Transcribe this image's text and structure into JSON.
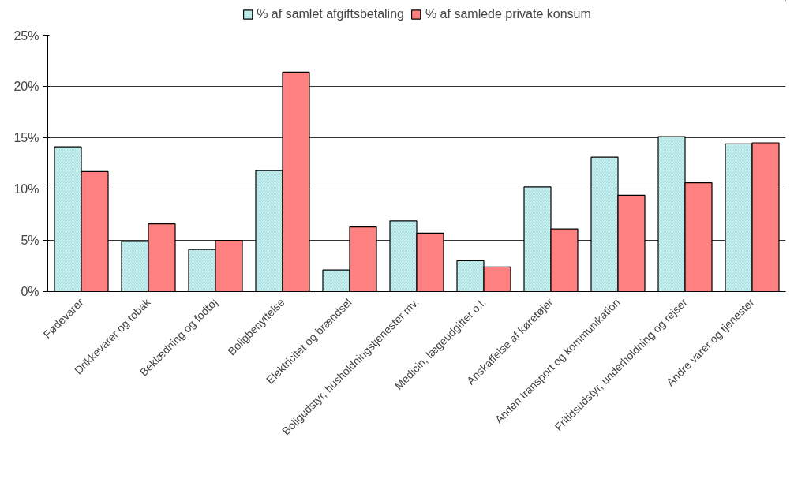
{
  "chart_data": {
    "type": "bar",
    "categories": [
      "Fødevarer",
      "Drikkevarer og tobak",
      "Beklædning og fodtøj",
      "Boligbenyttelse",
      "Elektricitet og brændsel",
      "Boligudstyr, husholdningstjenester mv.",
      "Medicin, lægeudgifter o.l.",
      "Anskaffelse af køretøjer",
      "Anden transport og kommunikation",
      "Fritidsudstyr, underholdning og rejser",
      "Andre varer og tjenester"
    ],
    "series": [
      {
        "name": "% af samlet afgiftsbetaling",
        "color": "#ccf2f2",
        "values": [
          14.1,
          4.9,
          4.1,
          11.8,
          2.1,
          6.9,
          3.0,
          10.2,
          13.1,
          15.1,
          14.4
        ]
      },
      {
        "name": "% af samlede private konsum",
        "color": "#ff8080",
        "values": [
          11.7,
          6.6,
          5.0,
          21.4,
          6.3,
          5.7,
          2.4,
          6.1,
          9.4,
          10.6,
          14.5
        ]
      }
    ],
    "ylim": [
      0,
      25
    ],
    "yticks": [
      {
        "value": 0,
        "label": "0%"
      },
      {
        "value": 5,
        "label": "5%"
      },
      {
        "value": 10,
        "label": "10%"
      },
      {
        "value": 15,
        "label": "15%"
      },
      {
        "value": 20,
        "label": "20%"
      },
      {
        "value": 25,
        "label": "25%"
      }
    ],
    "grid": "y",
    "legend": "top"
  }
}
